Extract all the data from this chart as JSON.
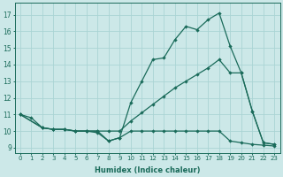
{
  "xlabel": "Humidex (Indice chaleur)",
  "bg_color": "#cce8e8",
  "line_color": "#1a6b5a",
  "grid_color": "#aad4d4",
  "xlim": [
    -0.5,
    23.5
  ],
  "ylim": [
    8.7,
    17.7
  ],
  "yticks": [
    9,
    10,
    11,
    12,
    13,
    14,
    15,
    16,
    17
  ],
  "xticks": [
    0,
    1,
    2,
    3,
    4,
    5,
    6,
    7,
    8,
    9,
    10,
    11,
    12,
    13,
    14,
    15,
    16,
    17,
    18,
    19,
    20,
    21,
    22,
    23
  ],
  "line_bottom_x": [
    0,
    1,
    2,
    3,
    4,
    5,
    6,
    7,
    8,
    9,
    10,
    11,
    12,
    13,
    14,
    15,
    16,
    17,
    18,
    19,
    20,
    21,
    22,
    23
  ],
  "line_bottom_y": [
    11.0,
    10.8,
    10.2,
    10.1,
    10.1,
    10.0,
    10.0,
    9.9,
    9.4,
    9.6,
    10.0,
    10.0,
    10.0,
    10.0,
    10.0,
    10.0,
    10.0,
    10.0,
    10.0,
    9.4,
    9.3,
    9.2,
    9.15,
    9.1
  ],
  "line_diag_x": [
    0,
    2,
    3,
    4,
    5,
    6,
    7,
    8,
    9,
    10,
    11,
    12,
    13,
    14,
    15,
    16,
    17,
    18,
    19,
    20,
    21,
    22,
    23
  ],
  "line_diag_y": [
    11.0,
    10.2,
    10.1,
    10.1,
    10.0,
    10.0,
    10.0,
    10.0,
    10.0,
    10.6,
    11.1,
    11.6,
    12.1,
    12.6,
    13.0,
    13.4,
    13.8,
    14.3,
    13.5,
    13.5,
    11.2,
    9.3,
    9.2
  ],
  "line_upper_x": [
    0,
    2,
    3,
    4,
    5,
    6,
    7,
    8,
    9,
    10,
    11,
    12,
    13,
    14,
    15,
    16,
    17,
    18,
    19,
    20,
    21,
    22,
    23
  ],
  "line_upper_y": [
    11.0,
    10.2,
    10.1,
    10.1,
    10.0,
    10.0,
    10.0,
    9.4,
    9.6,
    11.7,
    13.0,
    14.3,
    14.4,
    15.5,
    16.3,
    16.1,
    16.7,
    17.1,
    15.1,
    13.5,
    11.2,
    9.3,
    9.2
  ]
}
